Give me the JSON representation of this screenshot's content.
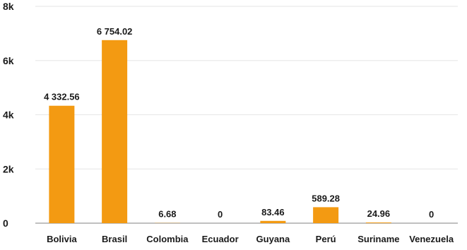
{
  "chart_data": {
    "type": "bar",
    "title": "",
    "xlabel": "",
    "ylabel": "",
    "categories": [
      "Bolivia",
      "Brasil",
      "Colombia",
      "Ecuador",
      "Guyana",
      "Perú",
      "Suriname",
      "Venezuela"
    ],
    "values": [
      4332.56,
      6754.02,
      6.68,
      0,
      83.46,
      589.28,
      24.96,
      0
    ],
    "data_labels": [
      "4 332.56",
      "6 754.02",
      "6.68",
      "0",
      "83.46",
      "589.28",
      "24.96",
      "0"
    ],
    "ylim": [
      0,
      8000
    ],
    "y_ticks": [
      0,
      2000,
      4000,
      6000,
      8000
    ],
    "y_tick_labels": [
      "0",
      "2k",
      "4k",
      "6k",
      "8k"
    ],
    "grid": "horizontal",
    "legend": "none",
    "colors": {
      "bar": "#F39A12",
      "grid": "#e6e6e6",
      "axis": "#9a9a9a",
      "text": "#1a1a1a"
    }
  }
}
